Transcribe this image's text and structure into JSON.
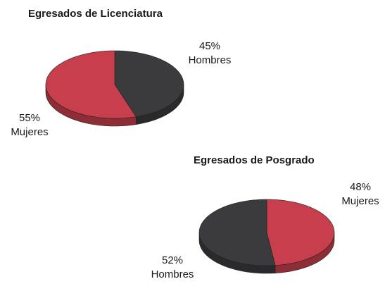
{
  "chart_data": [
    {
      "type": "pie",
      "title": "Egresados de Licenciatura",
      "categories": [
        "Hombres",
        "Mujeres"
      ],
      "values": [
        45,
        55
      ],
      "value_labels": [
        "45%",
        "55%"
      ],
      "colors": [
        "#3b3b3d",
        "#c73f4c"
      ]
    },
    {
      "type": "pie",
      "title": "Egresados de Posgrado",
      "categories": [
        "Mujeres",
        "Hombres"
      ],
      "values": [
        48,
        52
      ],
      "value_labels": [
        "48%",
        "52%"
      ],
      "colors": [
        "#c73f4c",
        "#3b3b3d"
      ]
    }
  ]
}
